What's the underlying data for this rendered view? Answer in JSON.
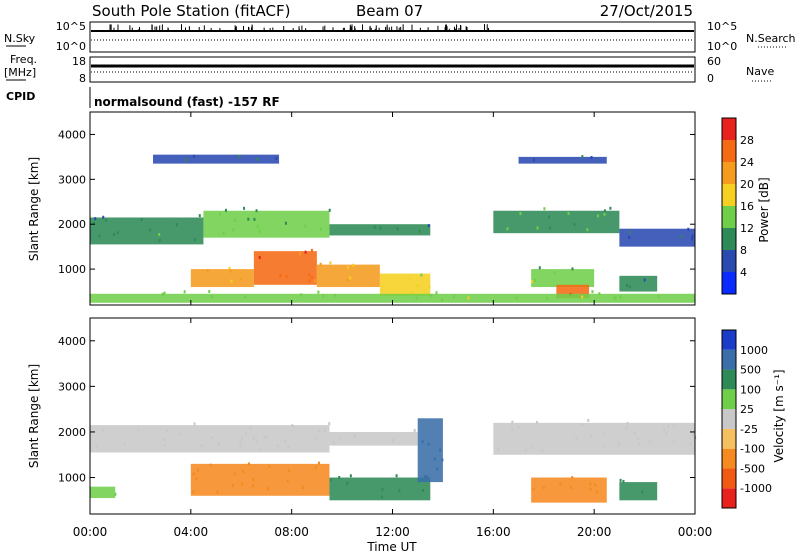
{
  "header": {
    "station": "South Pole Station (fitACF)",
    "beam": "Beam 07",
    "date": "27/Oct/2015"
  },
  "top_panels": {
    "nsky_label": "N.Sky",
    "nsearch_label": "N.Search",
    "nsky_ticks": [
      "10^5",
      "10^0"
    ],
    "nsearch_ticks": [
      "10^5",
      "10^0"
    ],
    "freq_label_1": "Freq.",
    "freq_label_2": "[MHz]",
    "freq_ticks": [
      "18",
      "8"
    ],
    "nave_label": "Nave",
    "nave_ticks": [
      "60",
      "0"
    ],
    "cpid_label": "CPID",
    "cpid_text": "normalsound (fast) -157 RF"
  },
  "chart_data": [
    {
      "type": "heatmap",
      "ylabel": "Slant Range [km]",
      "y_ticks": [
        "1000",
        "2000",
        "3000",
        "4000"
      ],
      "ylim": [
        200,
        4500
      ],
      "colorbar_label": "Power [dB]",
      "colorbar_ticks": [
        "4",
        "8",
        "12",
        "16",
        "20",
        "24",
        "28"
      ],
      "colorbar_colors": [
        "#0a2aff",
        "#2a4ab0",
        "#2e8b57",
        "#6fcf4a",
        "#f5d020",
        "#f59b1e",
        "#f56a14",
        "#e8221c"
      ],
      "regions": [
        {
          "t0": 0.0,
          "t1": 4.5,
          "r0": 1550,
          "r1": 2150,
          "v": 10
        },
        {
          "t0": 4.5,
          "t1": 9.5,
          "r0": 1700,
          "r1": 2300,
          "v": 12
        },
        {
          "t0": 9.5,
          "t1": 13.5,
          "r0": 1750,
          "r1": 2000,
          "v": 8
        },
        {
          "t0": 16.0,
          "t1": 21.0,
          "r0": 1800,
          "r1": 2300,
          "v": 11
        },
        {
          "t0": 21.0,
          "t1": 24.0,
          "r0": 1500,
          "r1": 1900,
          "v": 7
        },
        {
          "t0": 4.0,
          "t1": 6.5,
          "r0": 600,
          "r1": 1000,
          "v": 20
        },
        {
          "t0": 6.5,
          "t1": 9.0,
          "r0": 650,
          "r1": 1400,
          "v": 26
        },
        {
          "t0": 9.0,
          "t1": 11.5,
          "r0": 600,
          "r1": 1100,
          "v": 20
        },
        {
          "t0": 11.5,
          "t1": 13.5,
          "r0": 400,
          "r1": 900,
          "v": 18
        },
        {
          "t0": 17.5,
          "t1": 20.0,
          "r0": 600,
          "r1": 1000,
          "v": 14
        },
        {
          "t0": 18.5,
          "t1": 19.8,
          "r0": 350,
          "r1": 650,
          "v": 27
        },
        {
          "t0": 21.0,
          "t1": 22.5,
          "r0": 500,
          "r1": 850,
          "v": 9
        },
        {
          "t0": 2.5,
          "t1": 7.5,
          "r0": 3350,
          "r1": 3550,
          "v": 7
        },
        {
          "t0": 17.0,
          "t1": 20.5,
          "r0": 3350,
          "r1": 3500,
          "v": 6
        },
        {
          "t0": 0.0,
          "t1": 24.0,
          "r0": 250,
          "r1": 450,
          "v": 15
        }
      ]
    },
    {
      "type": "heatmap",
      "ylabel": "Slant Range [km]",
      "y_ticks": [
        "1000",
        "2000",
        "3000",
        "4000"
      ],
      "ylim": [
        200,
        4500
      ],
      "colorbar_label": "Velocity [m s⁻¹]",
      "colorbar_ticks": [
        "1000",
        "500",
        "100",
        "25",
        "-25",
        "-100",
        "-500",
        "-1000"
      ],
      "colorbar_colors": [
        "#1a3cc8",
        "#3a6ea8",
        "#2e8b57",
        "#6fcf4a",
        "#c8c8c8",
        "#f5c060",
        "#f58a20",
        "#f05a14",
        "#e8221c"
      ],
      "regions": [
        {
          "t0": 0.0,
          "t1": 9.5,
          "r0": 1550,
          "r1": 2150,
          "v": 0
        },
        {
          "t0": 9.5,
          "t1": 13.0,
          "r0": 1700,
          "r1": 2000,
          "v": 0
        },
        {
          "t0": 16.0,
          "t1": 24.0,
          "r0": 1500,
          "r1": 2200,
          "v": 0
        },
        {
          "t0": 4.0,
          "t1": 9.5,
          "r0": 600,
          "r1": 1300,
          "v": -300
        },
        {
          "t0": 9.5,
          "t1": 13.5,
          "r0": 500,
          "r1": 1000,
          "v": 150
        },
        {
          "t0": 13.0,
          "t1": 14.0,
          "r0": 900,
          "r1": 2300,
          "v": 600
        },
        {
          "t0": 17.5,
          "t1": 20.5,
          "r0": 450,
          "r1": 1000,
          "v": -300
        },
        {
          "t0": 21.0,
          "t1": 22.5,
          "r0": 500,
          "r1": 900,
          "v": 200
        },
        {
          "t0": 0.0,
          "t1": 1.0,
          "r0": 550,
          "r1": 800,
          "v": 60
        }
      ]
    }
  ],
  "x_ticks": [
    "00:00",
    "04:00",
    "08:00",
    "12:00",
    "16:00",
    "20:00",
    "00:00"
  ],
  "xlabel": "Time UT",
  "colors": {
    "trace": "#000000",
    "frame": "#000000"
  }
}
